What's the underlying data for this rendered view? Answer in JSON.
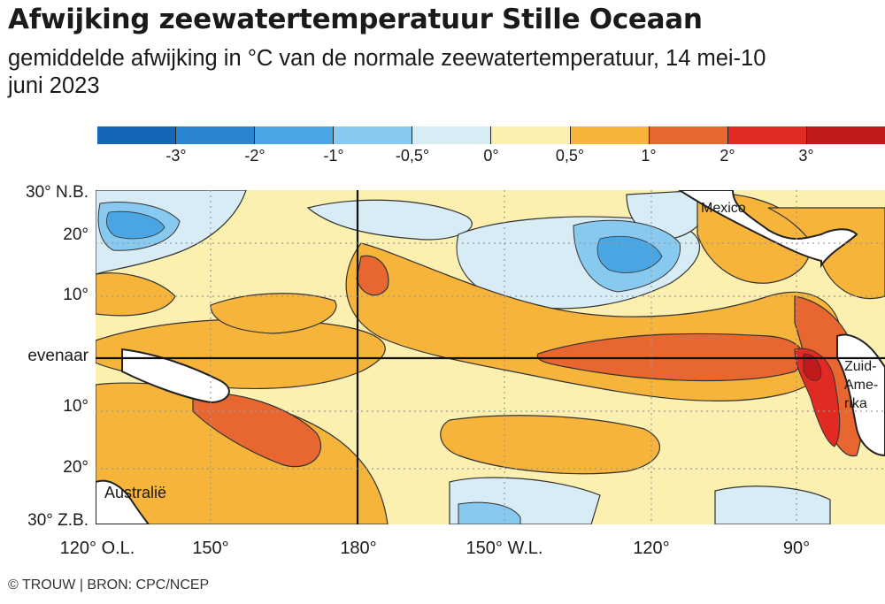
{
  "header": {
    "title": "Afwijking zeewatertemperatuur Stille Oceaan",
    "subtitle": "gemiddelde afwijking in °C van de normale zeewatertemperatuur, 14 mei-10 juni 2023"
  },
  "legend": {
    "colors": [
      "#1565b8",
      "#2a86d2",
      "#4aa6e3",
      "#88c9ef",
      "#d8ecf6",
      "#fbf0b0",
      "#f6b43a",
      "#e8662f",
      "#e02a22",
      "#c01a1c"
    ],
    "labels": [
      "-3°",
      "-2°",
      "-1°",
      "-0,5°",
      "0°",
      "0,5°",
      "1°",
      "2°",
      "3°"
    ]
  },
  "map": {
    "latitude_labels": [
      "30° N.B.",
      "20°",
      "10°",
      "evenaar",
      "10°",
      "20°",
      "30° Z.B."
    ],
    "longitude_labels": [
      "120° O.L.",
      "150°",
      "180°",
      "150° W.L.",
      "120°",
      "90°"
    ],
    "place_labels": {
      "mexico": "Mexico",
      "south_america_1": "Zuid-",
      "south_america_2": "Ame-",
      "south_america_3": "rika",
      "australia": "Australië"
    }
  },
  "footer": {
    "credit": "© TROUW | BRON: CPC/NCEP"
  }
}
